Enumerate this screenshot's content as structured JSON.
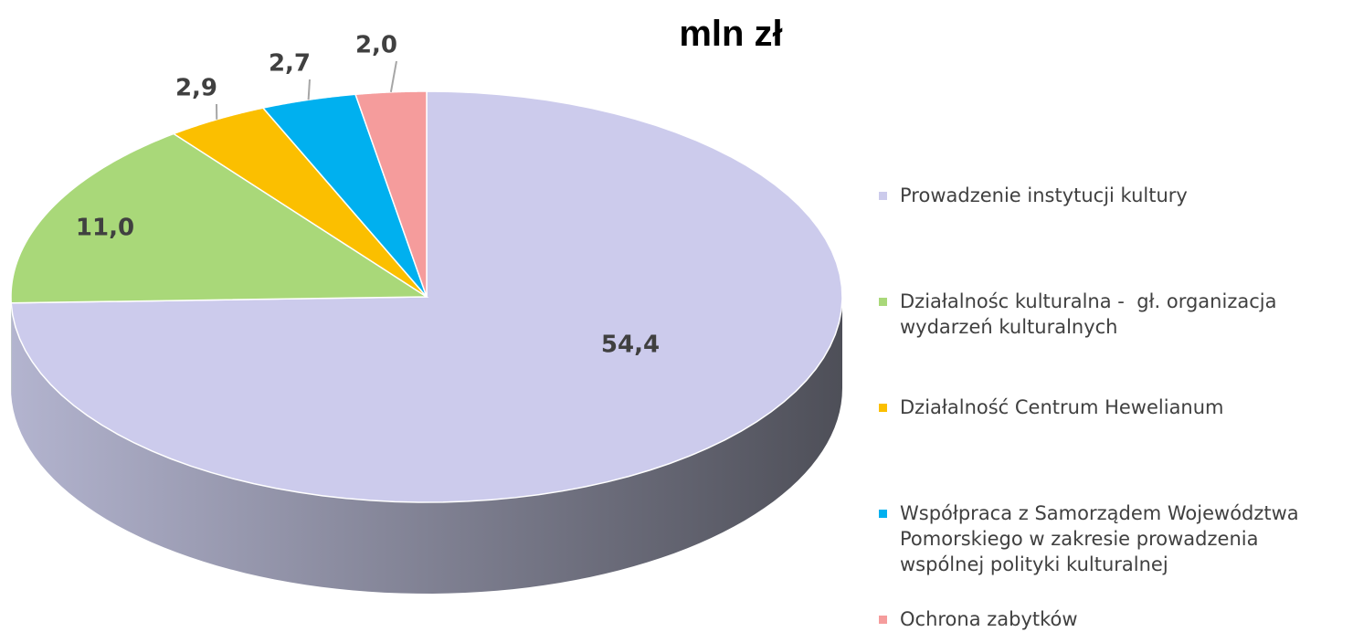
{
  "chart_data": {
    "type": "pie3d",
    "title": "mln zł",
    "categories": [
      "Prowadzenie instytucji kultury",
      "Działalnośc kulturalna -  gł. organizacja wydarzeń kulturalnych",
      "Działalność Centrum Hewelianum",
      "Współpraca z Samorządem Województwa Pomorskiego w zakresie prowadzenia wspólnej polityki kulturalnej",
      "Ochrona zabytków"
    ],
    "values": [
      54.4,
      11.0,
      2.9,
      2.7,
      2.0
    ],
    "value_labels": [
      "54,4",
      "11,0",
      "2,9",
      "2,7",
      "2,0"
    ],
    "colors": [
      "#cccbec",
      "#a9d879",
      "#fbbf00",
      "#00b0ef",
      "#f59c9c"
    ],
    "legend": "right"
  }
}
